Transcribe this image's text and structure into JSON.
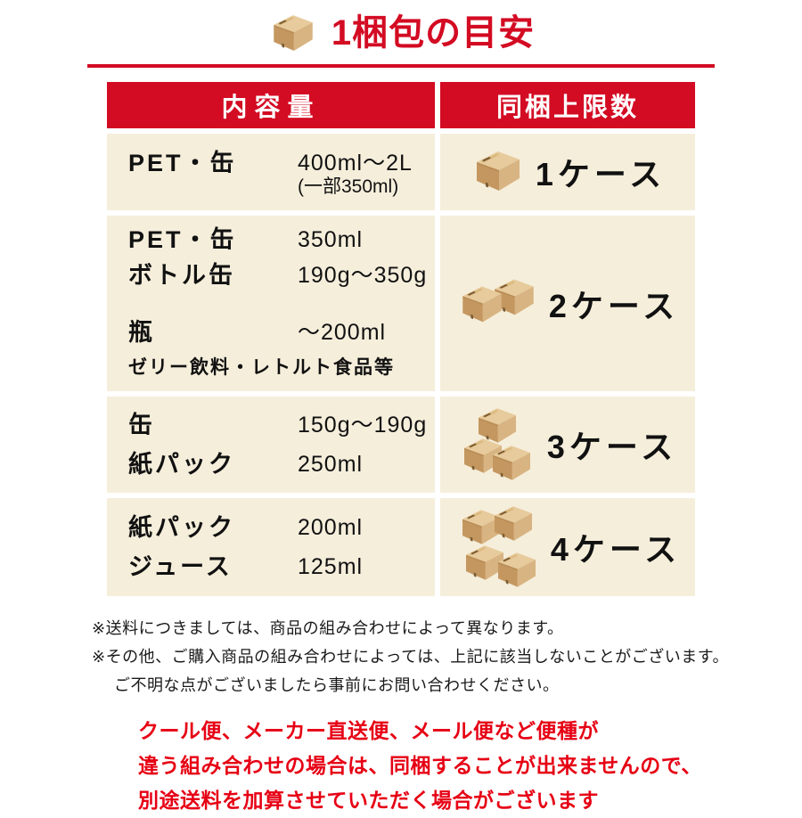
{
  "title": {
    "icon": "cardboard-box-icon",
    "text": "1梱包の目安"
  },
  "table": {
    "headers": {
      "left": "内容量",
      "right": "同梱上限数"
    },
    "rows": [
      {
        "items": [
          {
            "label": "PET・缶",
            "value": "400ml〜2L",
            "value_note": "(一部350ml)"
          }
        ],
        "cases": {
          "count": 1,
          "label": "1ケース"
        }
      },
      {
        "items": [
          {
            "label": "PET・缶",
            "value": "350ml"
          },
          {
            "label": "ボトル缶",
            "value": "190g〜350g"
          },
          {
            "label": "瓶",
            "value": "〜200ml"
          },
          {
            "label": "ゼリー飲料・レトルト食品等",
            "value": ""
          }
        ],
        "cases": {
          "count": 2,
          "label": "2ケース"
        }
      },
      {
        "items": [
          {
            "label": "缶",
            "value": "150g〜190g"
          },
          {
            "label": "紙パック",
            "value": "250ml"
          }
        ],
        "cases": {
          "count": 3,
          "label": "3ケース"
        }
      },
      {
        "items": [
          {
            "label": "紙パック",
            "value": "200ml"
          },
          {
            "label": "ジュース",
            "value": "125ml"
          }
        ],
        "cases": {
          "count": 4,
          "label": "4ケース"
        }
      }
    ]
  },
  "notes": [
    "※送料につきましては、商品の組み合わせによって異なります。",
    "※その他、ご購入商品の組み合わせによっては、上記に該当しないことがございます。",
    "ご不明な点がございましたら事前にお問い合わせください。"
  ],
  "warning": [
    "クール便、メーカー直送便、メール便など便種が",
    "違う組み合わせの場合は、同梱することが出来ませんので、",
    "別途送料を加算させていただく場合がございます"
  ],
  "colors": {
    "accent_red": "#d30b23",
    "warning_red": "#e60014",
    "cell_background": "#f5eedb",
    "box_tan": "#d8b482",
    "text_black": "#111111"
  }
}
